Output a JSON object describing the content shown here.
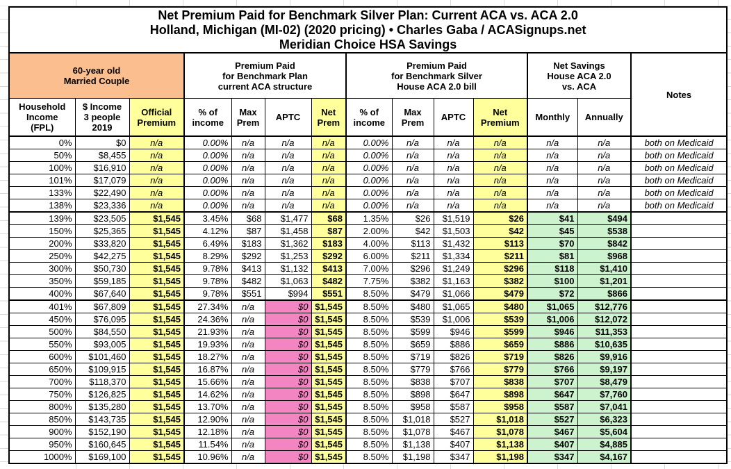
{
  "title": {
    "line1": "Net Premium Paid for Benchmark Silver Plan: Current ACA vs. ACA 2.0",
    "line2": "Holland, Michigan (MI-02) (2020 pricing) • Charles Gaba / ACASignups.net",
    "line3": "Meridian Choice HSA Savings"
  },
  "colors": {
    "couple_header": "#FBBF8F",
    "premium_highlight": "#FFFF9B",
    "zero_aptc_highlight": "#F485C3",
    "savings_highlight": "#CDF3CE",
    "border": "#000000",
    "margin_grid": "#D9D9D9"
  },
  "table": {
    "group_headers": {
      "couple": "60-year old\nMarried Couple",
      "current_aca": "Premium Paid\nfor Benchmark Plan\ncurrent ACA structure",
      "house_aca20": "Premium Paid\nfor Benchmark Silver\nHouse ACA 2.0 bill",
      "net_savings": "Net Savings\nHouse ACA 2.0\nvs. ACA",
      "notes": "Notes"
    },
    "column_headers": [
      "Household\nIncome\n(FPL)",
      "$ Income\n3 people\n2019",
      "Official\nPremium",
      "% of\nincome",
      "Max\nPrem",
      "APTC",
      "Net\nPrem",
      "% of\nincome",
      "Max\nPrem",
      "APTC",
      "Net\nPremium",
      "Monthly",
      "Annually"
    ]
  },
  "chart_data": {
    "type": "table",
    "columns": [
      "Household Income (FPL)",
      "$ Income 3 people 2019",
      "Official Premium",
      "ACA % of income",
      "ACA Max Prem",
      "ACA APTC",
      "ACA Net Prem",
      "House % of income",
      "House Max Prem",
      "House APTC",
      "House Net Premium",
      "Net Savings Monthly",
      "Net Savings Annually",
      "Notes"
    ],
    "rows": [
      {
        "band": "medicaid",
        "cells": [
          "0%",
          "$0",
          "n/a",
          "0.00%",
          "n/a",
          "n/a",
          "n/a",
          "0.00%",
          "n/a",
          "n/a",
          "n/a",
          "n/a",
          "n/a",
          "both on Medicaid"
        ]
      },
      {
        "band": "medicaid",
        "cells": [
          "50%",
          "$8,455",
          "n/a",
          "0.00%",
          "n/a",
          "n/a",
          "n/a",
          "0.00%",
          "n/a",
          "n/a",
          "n/a",
          "n/a",
          "n/a",
          "both on Medicaid"
        ]
      },
      {
        "band": "medicaid",
        "cells": [
          "100%",
          "$16,910",
          "n/a",
          "0.00%",
          "n/a",
          "n/a",
          "n/a",
          "0.00%",
          "n/a",
          "n/a",
          "n/a",
          "n/a",
          "n/a",
          "both on Medicaid"
        ]
      },
      {
        "band": "medicaid",
        "cells": [
          "101%",
          "$17,079",
          "n/a",
          "0.00%",
          "n/a",
          "n/a",
          "n/a",
          "0.00%",
          "n/a",
          "n/a",
          "n/a",
          "n/a",
          "n/a",
          "both on Medicaid"
        ]
      },
      {
        "band": "medicaid",
        "cells": [
          "133%",
          "$22,490",
          "n/a",
          "0.00%",
          "n/a",
          "n/a",
          "n/a",
          "0.00%",
          "n/a",
          "n/a",
          "n/a",
          "n/a",
          "n/a",
          "both on Medicaid"
        ]
      },
      {
        "band": "medicaid",
        "cells": [
          "138%",
          "$23,336",
          "n/a",
          "0.00%",
          "n/a",
          "n/a",
          "n/a",
          "0.00%",
          "n/a",
          "n/a",
          "n/a",
          "n/a",
          "n/a",
          "both on Medicaid"
        ]
      },
      {
        "band": "subsidized",
        "cells": [
          "139%",
          "$23,505",
          "$1,545",
          "3.45%",
          "$68",
          "$1,477",
          "$68",
          "1.35%",
          "$26",
          "$1,519",
          "$26",
          "$41",
          "$494",
          ""
        ]
      },
      {
        "band": "subsidized",
        "cells": [
          "150%",
          "$25,365",
          "$1,545",
          "4.12%",
          "$87",
          "$1,458",
          "$87",
          "2.00%",
          "$42",
          "$1,503",
          "$42",
          "$45",
          "$538",
          ""
        ]
      },
      {
        "band": "subsidized",
        "cells": [
          "200%",
          "$33,820",
          "$1,545",
          "6.49%",
          "$183",
          "$1,362",
          "$183",
          "4.00%",
          "$113",
          "$1,432",
          "$113",
          "$70",
          "$842",
          ""
        ]
      },
      {
        "band": "subsidized",
        "cells": [
          "250%",
          "$42,275",
          "$1,545",
          "8.29%",
          "$292",
          "$1,253",
          "$292",
          "6.00%",
          "$211",
          "$1,334",
          "$211",
          "$81",
          "$968",
          ""
        ]
      },
      {
        "band": "subsidized",
        "cells": [
          "300%",
          "$50,730",
          "$1,545",
          "9.78%",
          "$413",
          "$1,132",
          "$413",
          "7.00%",
          "$296",
          "$1,249",
          "$296",
          "$118",
          "$1,410",
          ""
        ]
      },
      {
        "band": "subsidized",
        "cells": [
          "350%",
          "$59,185",
          "$1,545",
          "9.78%",
          "$482",
          "$1,063",
          "$482",
          "7.75%",
          "$382",
          "$1,163",
          "$382",
          "$100",
          "$1,201",
          ""
        ]
      },
      {
        "band": "subsidized",
        "cells": [
          "400%",
          "$67,640",
          "$1,545",
          "9.78%",
          "$551",
          "$994",
          "$551",
          "8.50%",
          "$479",
          "$1,066",
          "$479",
          "$72",
          "$866",
          ""
        ]
      },
      {
        "band": "unsubsidized",
        "cells": [
          "401%",
          "$67,809",
          "$1,545",
          "27.34%",
          "n/a",
          "$0",
          "$1,545",
          "8.50%",
          "$480",
          "$1,065",
          "$480",
          "$1,065",
          "$12,776",
          ""
        ]
      },
      {
        "band": "unsubsidized",
        "cells": [
          "450%",
          "$76,095",
          "$1,545",
          "24.36%",
          "n/a",
          "$0",
          "$1,545",
          "8.50%",
          "$539",
          "$1,006",
          "$539",
          "$1,006",
          "$12,072",
          ""
        ]
      },
      {
        "band": "unsubsidized",
        "cells": [
          "500%",
          "$84,550",
          "$1,545",
          "21.93%",
          "n/a",
          "$0",
          "$1,545",
          "8.50%",
          "$599",
          "$946",
          "$599",
          "$946",
          "$11,353",
          ""
        ]
      },
      {
        "band": "unsubsidized",
        "cells": [
          "550%",
          "$93,005",
          "$1,545",
          "19.93%",
          "n/a",
          "$0",
          "$1,545",
          "8.50%",
          "$659",
          "$886",
          "$659",
          "$886",
          "$10,635",
          ""
        ]
      },
      {
        "band": "unsubsidized",
        "cells": [
          "600%",
          "$101,460",
          "$1,545",
          "18.27%",
          "n/a",
          "$0",
          "$1,545",
          "8.50%",
          "$719",
          "$826",
          "$719",
          "$826",
          "$9,916",
          ""
        ]
      },
      {
        "band": "unsubsidized",
        "cells": [
          "650%",
          "$109,915",
          "$1,545",
          "16.87%",
          "n/a",
          "$0",
          "$1,545",
          "8.50%",
          "$779",
          "$766",
          "$779",
          "$766",
          "$9,197",
          ""
        ]
      },
      {
        "band": "unsubsidized",
        "cells": [
          "700%",
          "$118,370",
          "$1,545",
          "15.66%",
          "n/a",
          "$0",
          "$1,545",
          "8.50%",
          "$838",
          "$707",
          "$838",
          "$707",
          "$8,479",
          ""
        ]
      },
      {
        "band": "unsubsidized",
        "cells": [
          "750%",
          "$126,825",
          "$1,545",
          "14.62%",
          "n/a",
          "$0",
          "$1,545",
          "8.50%",
          "$898",
          "$647",
          "$898",
          "$647",
          "$7,760",
          ""
        ]
      },
      {
        "band": "unsubsidized",
        "cells": [
          "800%",
          "$135,280",
          "$1,545",
          "13.70%",
          "n/a",
          "$0",
          "$1,545",
          "8.50%",
          "$958",
          "$587",
          "$958",
          "$587",
          "$7,041",
          ""
        ]
      },
      {
        "band": "unsubsidized",
        "cells": [
          "850%",
          "$143,735",
          "$1,545",
          "12.90%",
          "n/a",
          "$0",
          "$1,545",
          "8.50%",
          "$1,018",
          "$527",
          "$1,018",
          "$527",
          "$6,323",
          ""
        ]
      },
      {
        "band": "unsubsidized",
        "cells": [
          "900%",
          "$152,190",
          "$1,545",
          "12.18%",
          "n/a",
          "$0",
          "$1,545",
          "8.50%",
          "$1,078",
          "$467",
          "$1,078",
          "$467",
          "$5,604",
          ""
        ]
      },
      {
        "band": "unsubsidized",
        "cells": [
          "950%",
          "$160,645",
          "$1,545",
          "11.54%",
          "n/a",
          "$0",
          "$1,545",
          "8.50%",
          "$1,138",
          "$407",
          "$1,138",
          "$407",
          "$4,885",
          ""
        ]
      },
      {
        "band": "unsubsidized",
        "cells": [
          "1000%",
          "$169,100",
          "$1,545",
          "10.96%",
          "n/a",
          "$0",
          "$1,545",
          "8.50%",
          "$1,198",
          "$347",
          "$1,198",
          "$347",
          "$4,167",
          ""
        ]
      }
    ]
  }
}
